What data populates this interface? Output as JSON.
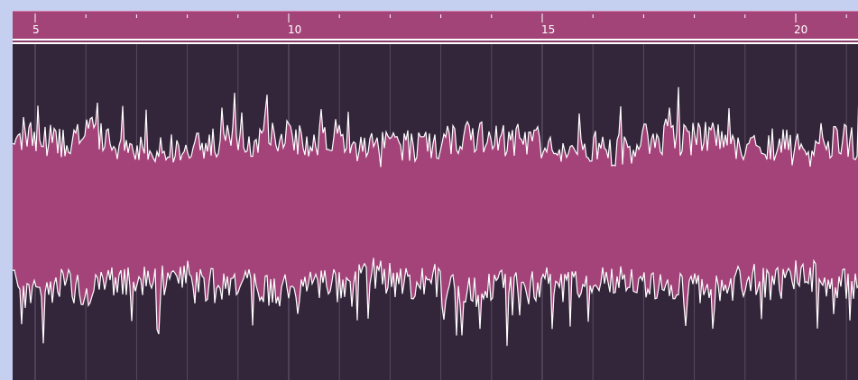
{
  "ruler": {
    "labels": [
      "5",
      "10",
      "15",
      "20"
    ]
  },
  "colors": {
    "frame": "#c5cfef",
    "ruler_bg": "#a34478",
    "ruler_text": "#ffffff",
    "wave_bg": "#33253a",
    "wave_fill": "#a3437a",
    "wave_outline": "#ffffff",
    "grid_line": "#5a4a60"
  }
}
